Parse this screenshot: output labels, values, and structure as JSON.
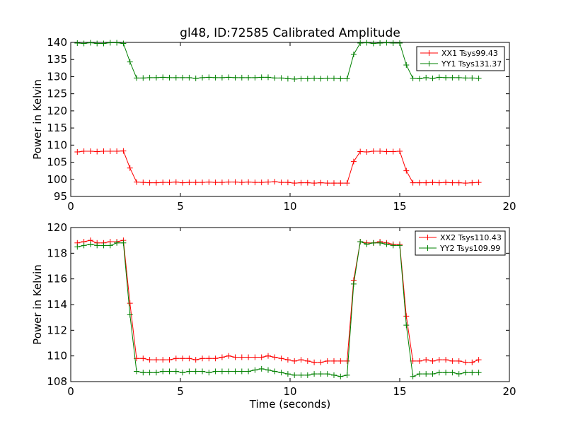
{
  "title": "gl48, ID:72585 Calibrated Amplitude",
  "chart_data": [
    {
      "type": "line",
      "title": "gl48, ID:72585 Calibrated Amplitude",
      "xlabel": "",
      "ylabel": "Power in Kelvin",
      "xlim": [
        0,
        20
      ],
      "ylim": [
        95,
        140
      ],
      "xticks": [
        "0",
        "5",
        "10",
        "15",
        "20"
      ],
      "yticks": [
        "95",
        "100",
        "105",
        "110",
        "115",
        "120",
        "125",
        "130",
        "135",
        "140"
      ],
      "legend_position": "top-right",
      "x": [
        0.3,
        0.6,
        0.9,
        1.2,
        1.5,
        1.8,
        2.1,
        2.4,
        2.7,
        3.0,
        3.3,
        3.6,
        3.9,
        4.2,
        4.5,
        4.8,
        5.1,
        5.4,
        5.7,
        6.0,
        6.3,
        6.6,
        6.9,
        7.2,
        7.5,
        7.8,
        8.1,
        8.4,
        8.7,
        9.0,
        9.3,
        9.6,
        9.9,
        10.2,
        10.5,
        10.8,
        11.1,
        11.4,
        11.7,
        12.0,
        12.3,
        12.6,
        12.9,
        13.2,
        13.5,
        13.8,
        14.1,
        14.4,
        14.7,
        15.0,
        15.3,
        15.6,
        15.9,
        16.2,
        16.5,
        16.8,
        17.1,
        17.4,
        17.7,
        18.0,
        18.3,
        18.6
      ],
      "series": [
        {
          "name": "XX1 Tsys99.43",
          "color": "#ff0000",
          "values": [
            108.0,
            108.2,
            108.2,
            108.1,
            108.2,
            108.2,
            108.2,
            108.3,
            103.3,
            99.2,
            99.1,
            99.0,
            99.0,
            99.1,
            99.1,
            99.2,
            99.0,
            99.1,
            99.1,
            99.1,
            99.2,
            99.1,
            99.1,
            99.2,
            99.2,
            99.1,
            99.2,
            99.1,
            99.1,
            99.2,
            99.3,
            99.1,
            99.1,
            98.9,
            99.0,
            99.0,
            98.9,
            99.0,
            98.9,
            98.9,
            98.9,
            98.9,
            105.2,
            108.1,
            108.0,
            108.2,
            108.2,
            108.1,
            108.1,
            108.2,
            102.5,
            99.0,
            99.0,
            99.0,
            99.1,
            99.0,
            99.1,
            99.0,
            99.0,
            98.9,
            99.0,
            99.1
          ]
        },
        {
          "name": "YY1 Tsys131.37",
          "color": "#008000",
          "values": [
            139.8,
            139.7,
            139.9,
            139.7,
            139.7,
            139.9,
            139.9,
            139.7,
            134.3,
            129.6,
            129.6,
            129.7,
            129.7,
            129.8,
            129.7,
            129.7,
            129.7,
            129.7,
            129.5,
            129.7,
            129.8,
            129.7,
            129.7,
            129.8,
            129.7,
            129.7,
            129.7,
            129.7,
            129.8,
            129.8,
            129.6,
            129.6,
            129.4,
            129.3,
            129.4,
            129.4,
            129.5,
            129.4,
            129.5,
            129.5,
            129.4,
            129.4,
            136.5,
            139.8,
            139.9,
            139.7,
            139.8,
            139.9,
            139.8,
            139.8,
            133.4,
            129.5,
            129.4,
            129.7,
            129.5,
            129.8,
            129.7,
            129.7,
            129.7,
            129.6,
            129.6,
            129.5
          ]
        }
      ]
    },
    {
      "type": "line",
      "title": "",
      "xlabel": "Time (seconds)",
      "ylabel": "Power in Kelvin",
      "xlim": [
        0,
        20
      ],
      "ylim": [
        108,
        120
      ],
      "xticks": [
        "0",
        "5",
        "10",
        "15",
        "20"
      ],
      "yticks": [
        "108",
        "110",
        "112",
        "114",
        "116",
        "118",
        "120"
      ],
      "legend_position": "top-right",
      "x": [
        0.3,
        0.6,
        0.9,
        1.2,
        1.5,
        1.8,
        2.1,
        2.4,
        2.7,
        3.0,
        3.3,
        3.6,
        3.9,
        4.2,
        4.5,
        4.8,
        5.1,
        5.4,
        5.7,
        6.0,
        6.3,
        6.6,
        6.9,
        7.2,
        7.5,
        7.8,
        8.1,
        8.4,
        8.7,
        9.0,
        9.3,
        9.6,
        9.9,
        10.2,
        10.5,
        10.8,
        11.1,
        11.4,
        11.7,
        12.0,
        12.3,
        12.6,
        12.9,
        13.2,
        13.5,
        13.8,
        14.1,
        14.4,
        14.7,
        15.0,
        15.3,
        15.6,
        15.9,
        16.2,
        16.5,
        16.8,
        17.1,
        17.4,
        17.7,
        18.0,
        18.3,
        18.6
      ],
      "series": [
        {
          "name": "XX2 Tsys110.43",
          "color": "#ff0000",
          "values": [
            118.8,
            118.9,
            119.0,
            118.8,
            118.8,
            118.9,
            118.9,
            119.0,
            114.1,
            109.8,
            109.8,
            109.7,
            109.7,
            109.7,
            109.7,
            109.8,
            109.8,
            109.8,
            109.7,
            109.8,
            109.8,
            109.8,
            109.9,
            110.0,
            109.9,
            109.9,
            109.9,
            109.9,
            109.9,
            110.0,
            109.9,
            109.8,
            109.7,
            109.6,
            109.7,
            109.6,
            109.5,
            109.5,
            109.6,
            109.6,
            109.6,
            109.6,
            115.9,
            118.9,
            118.8,
            118.8,
            118.9,
            118.8,
            118.7,
            118.7,
            113.1,
            109.6,
            109.6,
            109.7,
            109.6,
            109.7,
            109.7,
            109.6,
            109.6,
            109.5,
            109.5,
            109.7
          ]
        },
        {
          "name": "YY2 Tsys109.99",
          "color": "#008000",
          "values": [
            118.5,
            118.6,
            118.7,
            118.6,
            118.6,
            118.6,
            118.8,
            118.8,
            113.2,
            108.8,
            108.7,
            108.7,
            108.7,
            108.8,
            108.8,
            108.8,
            108.7,
            108.8,
            108.8,
            108.8,
            108.7,
            108.8,
            108.8,
            108.8,
            108.8,
            108.8,
            108.8,
            108.9,
            109.0,
            108.9,
            108.8,
            108.7,
            108.6,
            108.5,
            108.5,
            108.5,
            108.6,
            108.6,
            108.6,
            108.5,
            108.4,
            108.5,
            115.6,
            118.9,
            118.7,
            118.8,
            118.8,
            118.7,
            118.6,
            118.6,
            112.4,
            108.4,
            108.6,
            108.6,
            108.6,
            108.7,
            108.7,
            108.7,
            108.6,
            108.7,
            108.7,
            108.7
          ]
        }
      ]
    }
  ]
}
